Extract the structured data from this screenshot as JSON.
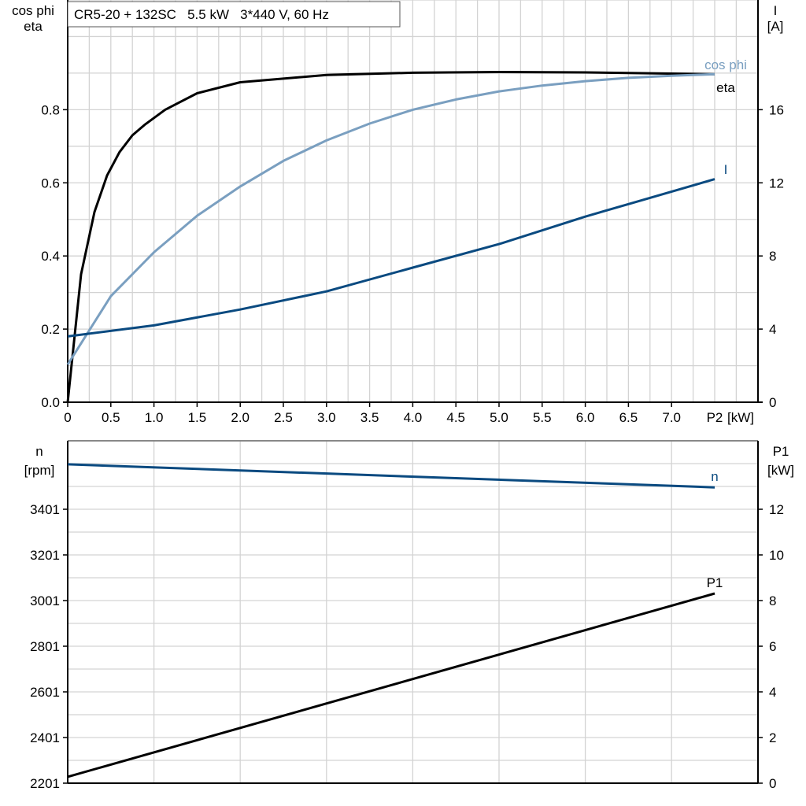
{
  "chart_data": [
    {
      "type": "line",
      "title": "CR5-20 + 132SC   5.5 kW   3*440 V, 60 Hz",
      "xlabel": "P2 [kW]",
      "ylabel_left": [
        "cos phi",
        "eta"
      ],
      "ylabel_right": [
        "I",
        "[A]"
      ],
      "xlim": [
        0,
        7.5
      ],
      "ylim_left": [
        0,
        1.1
      ],
      "ylim_right": [
        0,
        22
      ],
      "x_ticks": [
        "0",
        "0.5",
        "1.0",
        "1.5",
        "2.0",
        "2.5",
        "3.0",
        "3.5",
        "4.0",
        "4.5",
        "5.0",
        "5.5",
        "6.0",
        "6.5",
        "7.0"
      ],
      "y_left_ticks": [
        "0.0",
        "0.2",
        "0.4",
        "0.6",
        "0.8"
      ],
      "y_right_ticks": [
        "0",
        "4",
        "8",
        "12",
        "16"
      ],
      "grid": true,
      "series": [
        {
          "name": "eta",
          "axis": "left",
          "color": "#000000",
          "x": [
            0,
            0.155,
            0.31,
            0.456,
            0.6,
            0.75,
            0.9,
            1.13,
            1.5,
            2.0,
            3.0,
            4.0,
            5.0,
            6.0,
            7.5
          ],
          "y": [
            0,
            0.35,
            0.52,
            0.62,
            0.684,
            0.73,
            0.76,
            0.8,
            0.845,
            0.875,
            0.895,
            0.901,
            0.903,
            0.902,
            0.897
          ]
        },
        {
          "name": "cos phi",
          "axis": "left",
          "color": "#7a9fc0",
          "x": [
            0,
            0.5,
            1.0,
            1.5,
            2.0,
            2.5,
            3.0,
            3.5,
            4.0,
            4.5,
            5.0,
            5.5,
            6.0,
            6.5,
            7.0,
            7.5
          ],
          "y": [
            0.103,
            0.29,
            0.41,
            0.51,
            0.59,
            0.66,
            0.716,
            0.762,
            0.8,
            0.828,
            0.85,
            0.866,
            0.878,
            0.887,
            0.893,
            0.897
          ]
        },
        {
          "name": "I",
          "axis": "right",
          "color": "#0a4a80",
          "x": [
            0,
            1.0,
            2.0,
            3.0,
            4.0,
            5.0,
            6.0,
            7.5
          ],
          "y": [
            3.6,
            4.2,
            5.07,
            6.06,
            7.36,
            8.65,
            10.15,
            12.2
          ]
        }
      ]
    },
    {
      "type": "line",
      "xlim": [
        0,
        7.5
      ],
      "ylabel_left": [
        "n",
        "[rpm]"
      ],
      "ylabel_right": [
        "P1",
        "[kW]"
      ],
      "ylim_left": [
        2201,
        3701
      ],
      "ylim_right": [
        0,
        15
      ],
      "y_left_ticks": [
        "2201",
        "2401",
        "2601",
        "2801",
        "3001",
        "3201",
        "3401"
      ],
      "y_right_ticks": [
        "0",
        "2",
        "4",
        "6",
        "8",
        "10",
        "12"
      ],
      "grid": true,
      "series": [
        {
          "name": "n",
          "axis": "left",
          "color": "#0a4a80",
          "x": [
            0,
            7.5
          ],
          "y": [
            3598,
            3497
          ]
        },
        {
          "name": "P1",
          "axis": "right",
          "color": "#000000",
          "x": [
            0,
            7.5
          ],
          "y": [
            0.28,
            8.31
          ]
        }
      ]
    }
  ]
}
